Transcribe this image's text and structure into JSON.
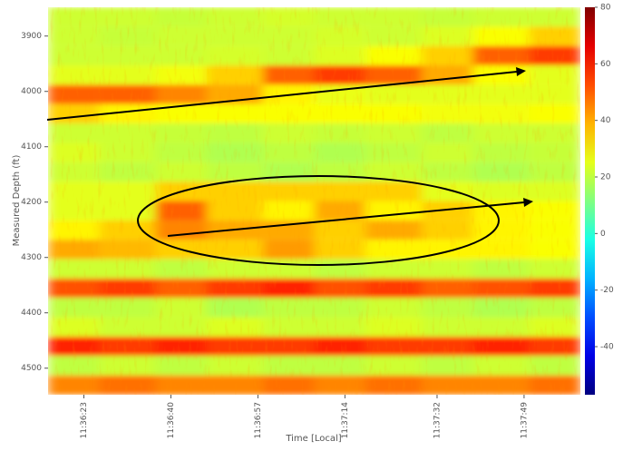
{
  "chart_data": {
    "type": "heatmap",
    "xlabel": "Time [Local]",
    "ylabel": "Measured Depth (ft)",
    "xlim": [
      41776,
      41880
    ],
    "xticks": [
      {
        "value": 41783,
        "label": "11:36:23"
      },
      {
        "value": 41800,
        "label": "11:36:40"
      },
      {
        "value": 41817,
        "label": "11:36:57"
      },
      {
        "value": 41834,
        "label": "11:37:14"
      },
      {
        "value": 41852,
        "label": "11:37:32"
      },
      {
        "value": 41869,
        "label": "11:37:49"
      }
    ],
    "ylim": [
      4548,
      3848
    ],
    "yticks": [
      3900,
      4000,
      4100,
      4200,
      4300,
      4400,
      4500
    ],
    "xbins": [
      41776,
      41786,
      41797,
      41807,
      41818,
      41828,
      41838,
      41849,
      41859,
      41870,
      41880
    ],
    "ybins": [
      3848,
      3883,
      3918,
      3953,
      3988,
      4023,
      4058,
      4093,
      4128,
      4163,
      4198,
      4233,
      4268,
      4303,
      4338,
      4373,
      4408,
      4443,
      4478,
      4513,
      4548
    ],
    "colormap": "jet",
    "clim": [
      -57,
      80
    ],
    "cticks": [
      -40,
      -20,
      0,
      20,
      40,
      60,
      80
    ],
    "values": [
      [
        22,
        22,
        21,
        22,
        23,
        22,
        22,
        21,
        22,
        22
      ],
      [
        22,
        21,
        22,
        22,
        22,
        23,
        22,
        24,
        28,
        35
      ],
      [
        22,
        22,
        22,
        23,
        22,
        24,
        28,
        35,
        50,
        55
      ],
      [
        25,
        25,
        27,
        35,
        50,
        55,
        50,
        40,
        28,
        25
      ],
      [
        50,
        50,
        45,
        40,
        30,
        26,
        25,
        25,
        25,
        25
      ],
      [
        35,
        30,
        28,
        28,
        28,
        28,
        28,
        27,
        27,
        28
      ],
      [
        22,
        22,
        21,
        20,
        22,
        21,
        22,
        20,
        22,
        22
      ],
      [
        24,
        22,
        20,
        18,
        20,
        18,
        20,
        22,
        20,
        21
      ],
      [
        22,
        20,
        22,
        20,
        18,
        20,
        22,
        20,
        18,
        20
      ],
      [
        25,
        25,
        35,
        35,
        35,
        35,
        35,
        25,
        24,
        24
      ],
      [
        25,
        25,
        50,
        35,
        30,
        40,
        30,
        35,
        30,
        28
      ],
      [
        30,
        35,
        45,
        40,
        40,
        35,
        40,
        35,
        30,
        28
      ],
      [
        40,
        38,
        35,
        35,
        42,
        35,
        30,
        30,
        30,
        28
      ],
      [
        22,
        22,
        20,
        22,
        22,
        20,
        22,
        22,
        20,
        22
      ],
      [
        52,
        55,
        50,
        55,
        58,
        52,
        55,
        50,
        52,
        55
      ],
      [
        20,
        20,
        22,
        18,
        20,
        20,
        22,
        20,
        18,
        20
      ],
      [
        24,
        22,
        22,
        24,
        22,
        22,
        24,
        22,
        22,
        24
      ],
      [
        58,
        55,
        58,
        55,
        55,
        58,
        55,
        55,
        58,
        55
      ],
      [
        20,
        22,
        20,
        22,
        20,
        20,
        22,
        20,
        22,
        20
      ],
      [
        45,
        48,
        45,
        45,
        48,
        45,
        48,
        45,
        45,
        48
      ]
    ]
  }
}
